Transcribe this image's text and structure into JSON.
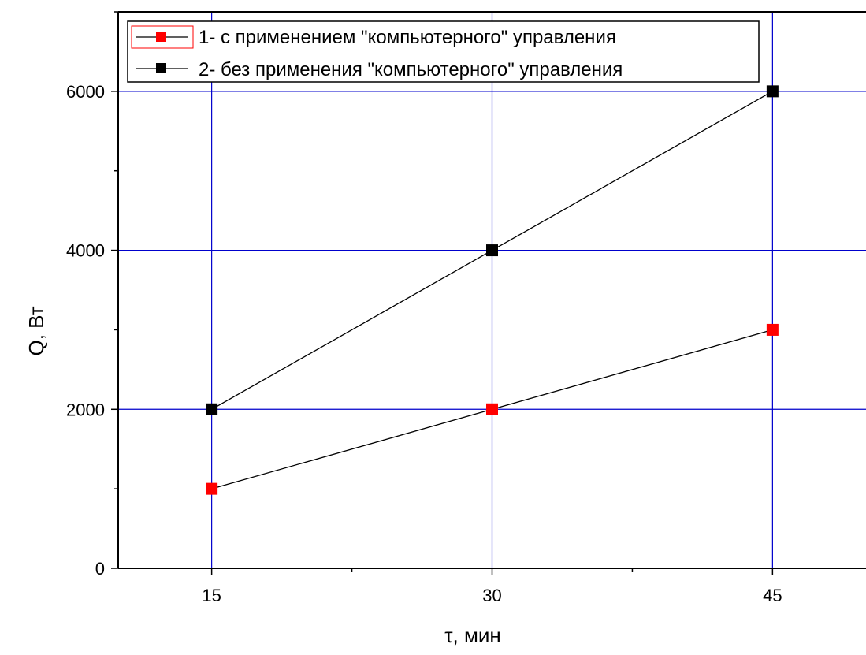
{
  "chart_data": {
    "type": "line",
    "xlabel": "τ, мин",
    "ylabel": "Q, Вт",
    "x": [
      15,
      30,
      45
    ],
    "xlim": [
      10,
      50
    ],
    "ylim": [
      0,
      7000
    ],
    "x_ticks": [
      15,
      30,
      45
    ],
    "y_ticks": [
      0,
      2000,
      4000,
      6000
    ],
    "grid": true,
    "legend_position": "top-left",
    "series": [
      {
        "name": "1- с применением \"компьютерного\" управления",
        "values": [
          1000,
          2000,
          3000
        ],
        "marker": "square",
        "color": "#ff0000"
      },
      {
        "name": "2- без применения \"компьютерного\" управления",
        "values": [
          2000,
          4000,
          6000
        ],
        "marker": "square",
        "color": "#000000"
      }
    ],
    "colors": {
      "grid": "#0000cc",
      "axis": "#000000",
      "line": "#000000"
    }
  }
}
